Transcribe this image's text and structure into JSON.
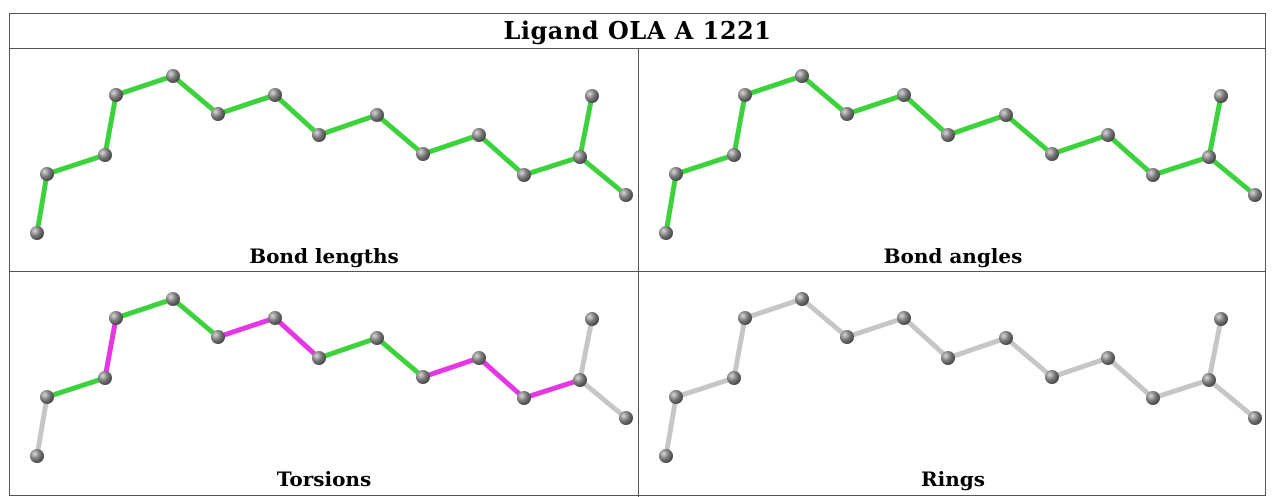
{
  "title": "Ligand OLA A 1221",
  "panels": [
    {
      "caption": "Bond lengths"
    },
    {
      "caption": "Bond angles"
    },
    {
      "caption": "Torsions"
    },
    {
      "caption": "Rings"
    }
  ],
  "colors": {
    "ok": "#3cd23c",
    "outlier": "#e436e4",
    "unassessed": "#c6c6c6",
    "atom": "#7a7a7a"
  }
}
